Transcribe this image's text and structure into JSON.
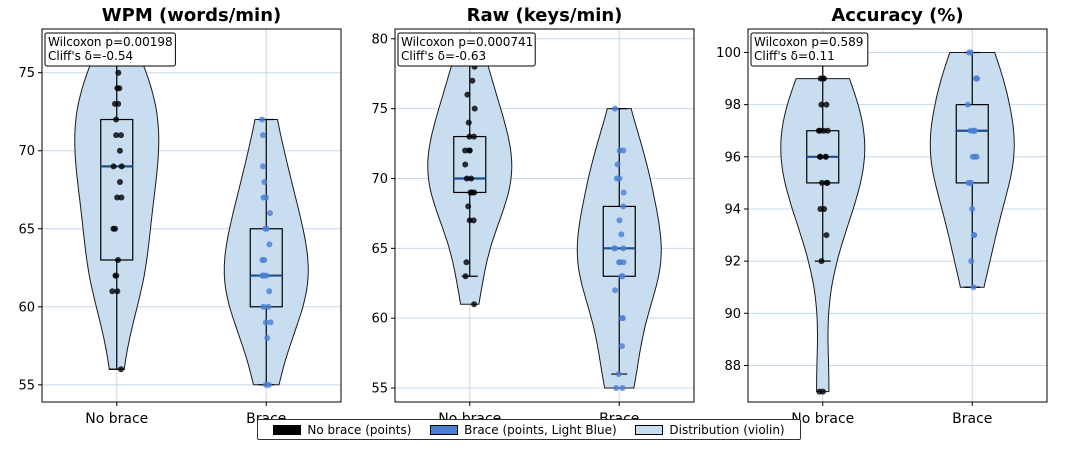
{
  "chart_data": [
    {
      "type": "violin",
      "title": "WPM (words/min)",
      "categories": [
        "No brace",
        "Brace"
      ],
      "ylim": [
        53.9,
        77.8
      ],
      "yticks": [
        55,
        60,
        65,
        70,
        75
      ],
      "grid": true,
      "annotation": [
        "Wilcoxon p=0.00198",
        "Cliff's δ=-0.54"
      ],
      "box": [
        {
          "min": 56,
          "q1": 63,
          "median": 69,
          "q3": 72,
          "max": 76
        },
        {
          "min": 55,
          "q1": 60,
          "median": 62,
          "q3": 65,
          "max": 72
        }
      ],
      "points": [
        [
          56,
          61,
          61,
          62,
          62,
          63,
          65,
          65,
          67,
          67,
          68,
          69,
          69,
          70,
          71,
          71,
          72,
          73,
          73,
          74,
          74,
          75,
          76
        ],
        [
          55,
          55,
          58,
          59,
          59,
          60,
          60,
          61,
          62,
          62,
          62,
          62,
          63,
          63,
          64,
          65,
          65,
          66,
          67,
          67,
          68,
          69,
          71,
          72
        ]
      ]
    },
    {
      "type": "violin",
      "title": "Raw (keys/min)",
      "categories": [
        "No brace",
        "Brace"
      ],
      "ylim": [
        54,
        80.7
      ],
      "yticks": [
        55,
        60,
        65,
        70,
        75,
        80
      ],
      "grid": true,
      "annotation": [
        "Wilcoxon p=0.000741",
        "Cliff's δ=-0.63"
      ],
      "box": [
        {
          "min": 63,
          "q1": 69,
          "median": 70,
          "q3": 73,
          "max": 79
        },
        {
          "min": 56,
          "q1": 63,
          "median": 65,
          "q3": 68,
          "max": 75
        }
      ],
      "points": [
        [
          61,
          63,
          64,
          67,
          67,
          68,
          69,
          69,
          69,
          70,
          70,
          71,
          72,
          72,
          72,
          73,
          73,
          74,
          75,
          76,
          77,
          78,
          79
        ],
        [
          55,
          55,
          56,
          58,
          60,
          60,
          62,
          63,
          63,
          64,
          64,
          64,
          65,
          65,
          65,
          66,
          67,
          68,
          69,
          70,
          70,
          71,
          72,
          72,
          75
        ]
      ]
    },
    {
      "type": "violin",
      "title": "Accuracy (%)",
      "categories": [
        "No brace",
        "Brace"
      ],
      "ylim": [
        86.6,
        100.9
      ],
      "yticks": [
        88,
        90,
        92,
        94,
        96,
        98,
        100
      ],
      "grid": true,
      "annotation": [
        "Wilcoxon p=0.589",
        "Cliff's δ=0.11"
      ],
      "box": [
        {
          "min": 92,
          "q1": 95,
          "median": 96,
          "q3": 97,
          "max": 99.5
        },
        {
          "min": 91,
          "q1": 95,
          "median": 97,
          "q3": 98,
          "max": 100
        }
      ],
      "points": [
        [
          87,
          87,
          92,
          93,
          94,
          94,
          95,
          95,
          95,
          96,
          96,
          96,
          96,
          97,
          97,
          97,
          97,
          98,
          98,
          99,
          99,
          99
        ],
        [
          91,
          92,
          93,
          93,
          94,
          95,
          95,
          95,
          96,
          96,
          96,
          97,
          97,
          97,
          97,
          98,
          99,
          99,
          99,
          100,
          100
        ]
      ]
    }
  ],
  "legend": [
    {
      "label": "No brace (points)",
      "color": "#000000"
    },
    {
      "label": "Brace (points, Light Blue)",
      "color": "#4a7fd4"
    },
    {
      "label": "Distribution (violin)",
      "color": "#c9ddf0"
    }
  ],
  "colors": {
    "violin_fill": "#c9ddf0",
    "violin_edge": "#1a1a1a",
    "no_brace_points": "#000000",
    "brace_points": "#4a7fd4",
    "grid": "#c8d8ec"
  }
}
